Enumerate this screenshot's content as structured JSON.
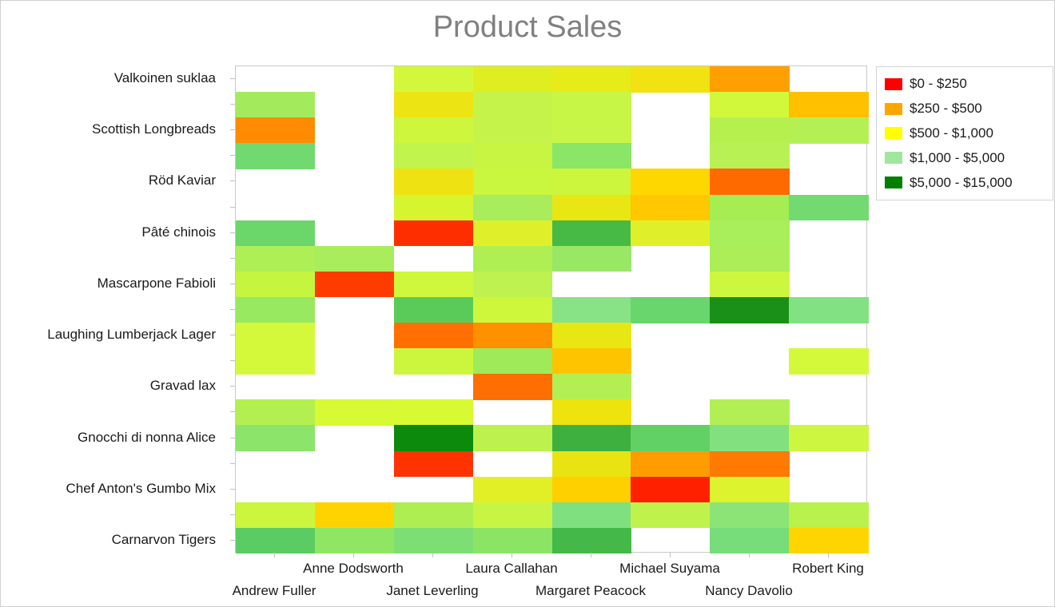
{
  "chart_data": {
    "type": "heatmap",
    "title": "Product Sales",
    "x_categories": [
      "Andrew Fuller",
      "Anne Dodsworth",
      "Janet Leverling",
      "Laura Callahan",
      "Margaret Peacock",
      "Michael Suyama",
      "Nancy Davolio",
      "Robert King"
    ],
    "y_rows": [
      "Valkoinen suklaa",
      "",
      "Scottish Longbreads",
      "",
      "Röd Kaviar",
      "",
      "Pâté chinois",
      "",
      "Mascarpone Fabioli",
      "",
      "Laughing Lumberjack Lager",
      "",
      "Gravad lax",
      "",
      "Gnocchi di nonna Alice",
      "",
      "Chef Anton's Gumbo Mix",
      "",
      "Carnarvon Tigers"
    ],
    "legend_title_note": "",
    "legend": [
      {
        "label": "$0 - $250",
        "color": "#FF0000"
      },
      {
        "label": "$250 - $500",
        "color": "#FFA500"
      },
      {
        "label": "$500 - $1,000",
        "color": "#FFFF00"
      },
      {
        "label": "$1,000 - $5,000",
        "color": "#9FE69F"
      },
      {
        "label": "$5,000 - $15,000",
        "color": "#008000"
      }
    ],
    "cells": [
      [
        null,
        null,
        "#D3F83B",
        "#DFEE21",
        "#E6EB19",
        "#F1E211",
        "#FFA000",
        null
      ],
      [
        "#A3EB5C",
        null,
        "#EDE414",
        "#C5F34A",
        "#C8F646",
        null,
        "#D2F83C",
        "#FFC000"
      ],
      [
        "#FF8C00",
        null,
        "#CDF63C",
        "#C5F34A",
        "#C8F646",
        null,
        "#B6F04F",
        "#B4F054"
      ],
      [
        "#70D970",
        null,
        "#C1F44C",
        "#C8F542",
        "#8BE567",
        null,
        "#B8F153",
        null
      ],
      [
        null,
        null,
        "#EEE213",
        "#C9F63E",
        "#CCF63D",
        "#FFD700",
        "#FF6A00",
        null
      ],
      [
        null,
        null,
        "#D6F52E",
        "#A9EC5C",
        "#E8E714",
        "#FFC800",
        "#A5ED52",
        "#72DA70"
      ],
      [
        "#6BD669",
        null,
        "#FF2E00",
        "#DFF02B",
        "#47B945",
        "#DFF02B",
        "#A9EE5B",
        null
      ],
      [
        "#AEEF55",
        "#A9ED5D",
        null,
        "#AFEF54",
        "#98E865",
        null,
        "#ABEE58",
        null
      ],
      [
        "#C5F53F",
        "#FF3C00",
        "#CEF73D",
        "#BDF251",
        null,
        null,
        "#CDF73F",
        null
      ],
      [
        "#98E95F",
        null,
        "#5ACB59",
        "#CEF73B",
        "#87E386",
        "#69D56D",
        "#1B9018",
        "#82E183"
      ],
      [
        "#D4F93A",
        null,
        "#FF7000",
        "#FF9000",
        "#E8E714",
        null,
        null,
        null
      ],
      [
        "#D4F93A",
        null,
        "#CCF63E",
        "#9FEA58",
        "#FFC400",
        null,
        null,
        "#D4F93A"
      ],
      [
        null,
        null,
        null,
        "#FF6E00",
        "#B3EF53",
        null,
        null,
        null
      ],
      [
        "#B4EF52",
        "#D7FA35",
        "#D8FA33",
        null,
        "#EFE30E",
        null,
        "#B2EF55",
        null
      ],
      [
        "#8CE46A",
        null,
        "#0C8A0C",
        "#BDF24E",
        "#3DB03F",
        "#62D165",
        "#82E07F",
        "#CCF63F"
      ],
      [
        null,
        null,
        "#FF3300",
        null,
        "#E9E312",
        "#FF9C00",
        "#FF7A00",
        null
      ],
      [
        null,
        null,
        null,
        "#E2EF26",
        "#FFD000",
        "#FF2000",
        "#DCF32E",
        null
      ],
      [
        "#CBF63D",
        "#FFD300",
        "#AEEE53",
        "#C8F544",
        "#7FE07F",
        "#BFF34C",
        "#8CE476",
        "#B9F14D"
      ],
      [
        "#5BCC63",
        "#90E663",
        "#7DDF73",
        "#8CE465",
        "#44B848",
        null,
        "#77DC7A",
        "#FFD500"
      ]
    ]
  }
}
